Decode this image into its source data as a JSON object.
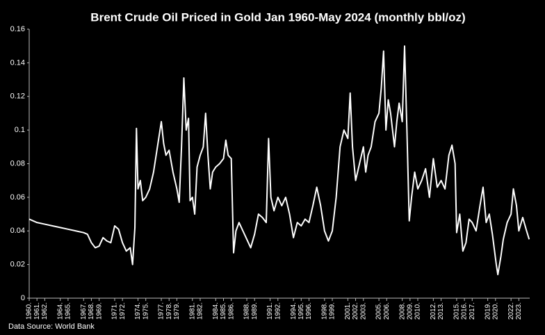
{
  "chart_data": {
    "type": "line",
    "title": "Brent Crude Oil Priced in Gold Jan 1960-May 2024 (monthly bbl/oz)",
    "source": "Data Source: World Bank",
    "x": [
      1960.0,
      1961,
      1962,
      1963,
      1964,
      1965,
      1966,
      1967,
      1967.5,
      1968,
      1968.5,
      1969,
      1969.5,
      1970,
      1970.5,
      1971,
      1971.5,
      1972,
      1972.5,
      1973,
      1973.3,
      1973.6,
      1973.8,
      1974,
      1974.3,
      1974.6,
      1975,
      1975.5,
      1976,
      1976.5,
      1977,
      1977.3,
      1977.6,
      1978,
      1978.5,
      1979,
      1979.3,
      1979.6,
      1979.9,
      1980.2,
      1980.5,
      1980.7,
      1981,
      1981.3,
      1981.6,
      1982,
      1982.4,
      1982.7,
      1983,
      1983.3,
      1983.6,
      1984,
      1984.5,
      1985,
      1985.3,
      1985.6,
      1986,
      1986.3,
      1986.6,
      1987,
      1987.5,
      1988,
      1988.5,
      1989,
      1989.5,
      1990,
      1990.5,
      1990.8,
      1991.1,
      1991.5,
      1992,
      1992.5,
      1993,
      1993.5,
      1994,
      1994.5,
      1995,
      1995.5,
      1996,
      1996.5,
      1997,
      1997.5,
      1998,
      1998.5,
      1999,
      1999.5,
      2000,
      2000.5,
      2001,
      2001.3,
      2001.6,
      2002,
      2002.5,
      2003,
      2003.3,
      2003.6,
      2004,
      2004.5,
      2005,
      2005.3,
      2005.6,
      2005.9,
      2006.2,
      2006.5,
      2007,
      2007.3,
      2007.6,
      2008,
      2008.3,
      2008.6,
      2008.9,
      2009.2,
      2009.6,
      2010,
      2010.5,
      2011,
      2011.5,
      2012,
      2012.5,
      2013,
      2013.5,
      2014,
      2014.4,
      2014.8,
      2015,
      2015.4,
      2015.8,
      2016.2,
      2016.6,
      2017,
      2017.5,
      2018,
      2018.4,
      2018.8,
      2019.2,
      2019.6,
      2020.1,
      2020.3,
      2020.7,
      2021,
      2021.5,
      2022,
      2022.3,
      2022.7,
      2023,
      2023.5,
      2024,
      2024.33
    ],
    "values": [
      0.047,
      0.045,
      0.044,
      0.043,
      0.042,
      0.041,
      0.04,
      0.039,
      0.038,
      0.033,
      0.03,
      0.031,
      0.036,
      0.034,
      0.033,
      0.043,
      0.041,
      0.033,
      0.028,
      0.03,
      0.02,
      0.042,
      0.101,
      0.065,
      0.07,
      0.058,
      0.06,
      0.065,
      0.075,
      0.09,
      0.105,
      0.092,
      0.085,
      0.088,
      0.075,
      0.065,
      0.057,
      0.09,
      0.131,
      0.1,
      0.107,
      0.058,
      0.06,
      0.05,
      0.078,
      0.085,
      0.09,
      0.11,
      0.085,
      0.065,
      0.075,
      0.078,
      0.08,
      0.083,
      0.094,
      0.085,
      0.083,
      0.027,
      0.04,
      0.045,
      0.04,
      0.035,
      0.03,
      0.038,
      0.05,
      0.048,
      0.045,
      0.095,
      0.06,
      0.052,
      0.06,
      0.055,
      0.06,
      0.05,
      0.036,
      0.045,
      0.043,
      0.047,
      0.045,
      0.055,
      0.066,
      0.055,
      0.04,
      0.034,
      0.04,
      0.06,
      0.09,
      0.1,
      0.095,
      0.122,
      0.09,
      0.07,
      0.08,
      0.09,
      0.075,
      0.085,
      0.09,
      0.105,
      0.11,
      0.125,
      0.147,
      0.1,
      0.118,
      0.11,
      0.09,
      0.105,
      0.116,
      0.105,
      0.15,
      0.1,
      0.046,
      0.06,
      0.075,
      0.065,
      0.07,
      0.077,
      0.06,
      0.083,
      0.066,
      0.07,
      0.065,
      0.085,
      0.091,
      0.08,
      0.039,
      0.05,
      0.028,
      0.033,
      0.047,
      0.045,
      0.04,
      0.055,
      0.066,
      0.045,
      0.05,
      0.038,
      0.02,
      0.014,
      0.025,
      0.035,
      0.045,
      0.05,
      0.065,
      0.055,
      0.04,
      0.048,
      0.04,
      0.035
    ],
    "color": "#ffffff",
    "xlim": [
      1960,
      2024.4
    ],
    "xticks": [
      {
        "value": 1960,
        "label": "1960."
      },
      {
        "value": 1961,
        "label": "1961."
      },
      {
        "value": 1962,
        "label": "1962."
      },
      {
        "value": 1964,
        "label": "1964."
      },
      {
        "value": 1965,
        "label": "1965."
      },
      {
        "value": 1967,
        "label": "1967."
      },
      {
        "value": 1968,
        "label": "1968."
      },
      {
        "value": 1969,
        "label": "1969."
      },
      {
        "value": 1971,
        "label": "1971."
      },
      {
        "value": 1972,
        "label": "1972."
      },
      {
        "value": 1974,
        "label": "1974."
      },
      {
        "value": 1975,
        "label": "1975."
      },
      {
        "value": 1977,
        "label": "1977."
      },
      {
        "value": 1978,
        "label": "1978."
      },
      {
        "value": 1979,
        "label": "1979."
      },
      {
        "value": 1981,
        "label": "1981."
      },
      {
        "value": 1982,
        "label": "1982."
      },
      {
        "value": 1984,
        "label": "1984."
      },
      {
        "value": 1985,
        "label": "1985."
      },
      {
        "value": 1986,
        "label": "1986."
      },
      {
        "value": 1988,
        "label": "1988."
      },
      {
        "value": 1989,
        "label": "1989."
      },
      {
        "value": 1991,
        "label": "1991."
      },
      {
        "value": 1992,
        "label": "1992."
      },
      {
        "value": 1994,
        "label": "1994."
      },
      {
        "value": 1995,
        "label": "1995."
      },
      {
        "value": 1996,
        "label": "1996."
      },
      {
        "value": 1998,
        "label": "1998."
      },
      {
        "value": 1999,
        "label": "1999."
      },
      {
        "value": 2001,
        "label": "2001."
      },
      {
        "value": 2002,
        "label": "2002."
      },
      {
        "value": 2003,
        "label": "2003."
      },
      {
        "value": 2005,
        "label": "2005."
      },
      {
        "value": 2006,
        "label": "2006."
      },
      {
        "value": 2008,
        "label": "2008."
      },
      {
        "value": 2009,
        "label": "2009."
      },
      {
        "value": 2010,
        "label": "2010."
      },
      {
        "value": 2012,
        "label": "2012."
      },
      {
        "value": 2013,
        "label": "2013."
      },
      {
        "value": 2015,
        "label": "2015."
      },
      {
        "value": 2016,
        "label": "2016."
      },
      {
        "value": 2017,
        "label": "2017."
      },
      {
        "value": 2019,
        "label": "2019."
      },
      {
        "value": 2020,
        "label": "2020."
      },
      {
        "value": 2022,
        "label": "2022."
      },
      {
        "value": 2023,
        "label": "2023."
      }
    ],
    "ylim": [
      0,
      0.16
    ],
    "yticks": [
      0,
      0.02,
      0.04,
      0.06,
      0.08,
      0.1,
      0.12,
      0.14,
      0.16
    ],
    "grid": false
  }
}
